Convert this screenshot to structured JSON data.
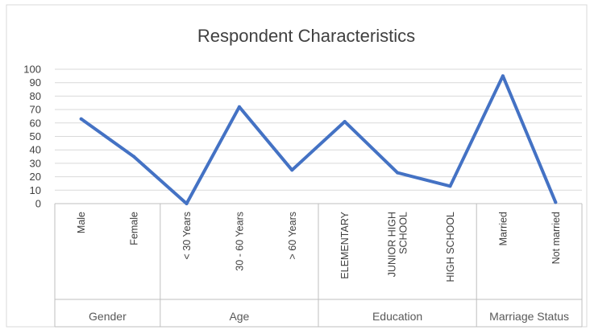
{
  "chart_data": {
    "type": "line",
    "title": "Respondent Characteristics",
    "categories": [
      "Male",
      "Female",
      "< 30 Years",
      "30 - 60 Years",
      "> 60 Years",
      "ELEMENTARY",
      "JUNIOR HIGH SCHOOL",
      "HIGH SCHOOL",
      "Married",
      "Not married"
    ],
    "category_lines": [
      [
        "Male"
      ],
      [
        "Female"
      ],
      [
        "< 30 Years"
      ],
      [
        "30 - 60 Years"
      ],
      [
        "> 60 Years"
      ],
      [
        "ELEMENTARY"
      ],
      [
        "JUNIOR HIGH",
        "SCHOOL"
      ],
      [
        "HIGH SCHOOL"
      ],
      [
        "Married"
      ],
      [
        "Not married"
      ]
    ],
    "groups": [
      {
        "label": "Gender",
        "count": 2
      },
      {
        "label": "Age",
        "count": 3
      },
      {
        "label": "Education",
        "count": 3
      },
      {
        "label": "Marriage Status",
        "count": 2
      }
    ],
    "series": [
      {
        "values": [
          63,
          35,
          0,
          72,
          25,
          61,
          23,
          13,
          95,
          1
        ],
        "color": "#4472c4"
      }
    ],
    "ylim": [
      0,
      100
    ],
    "yticks": [
      0,
      10,
      20,
      30,
      40,
      50,
      60,
      70,
      80,
      90,
      100
    ],
    "grid": true,
    "legend": "none"
  }
}
